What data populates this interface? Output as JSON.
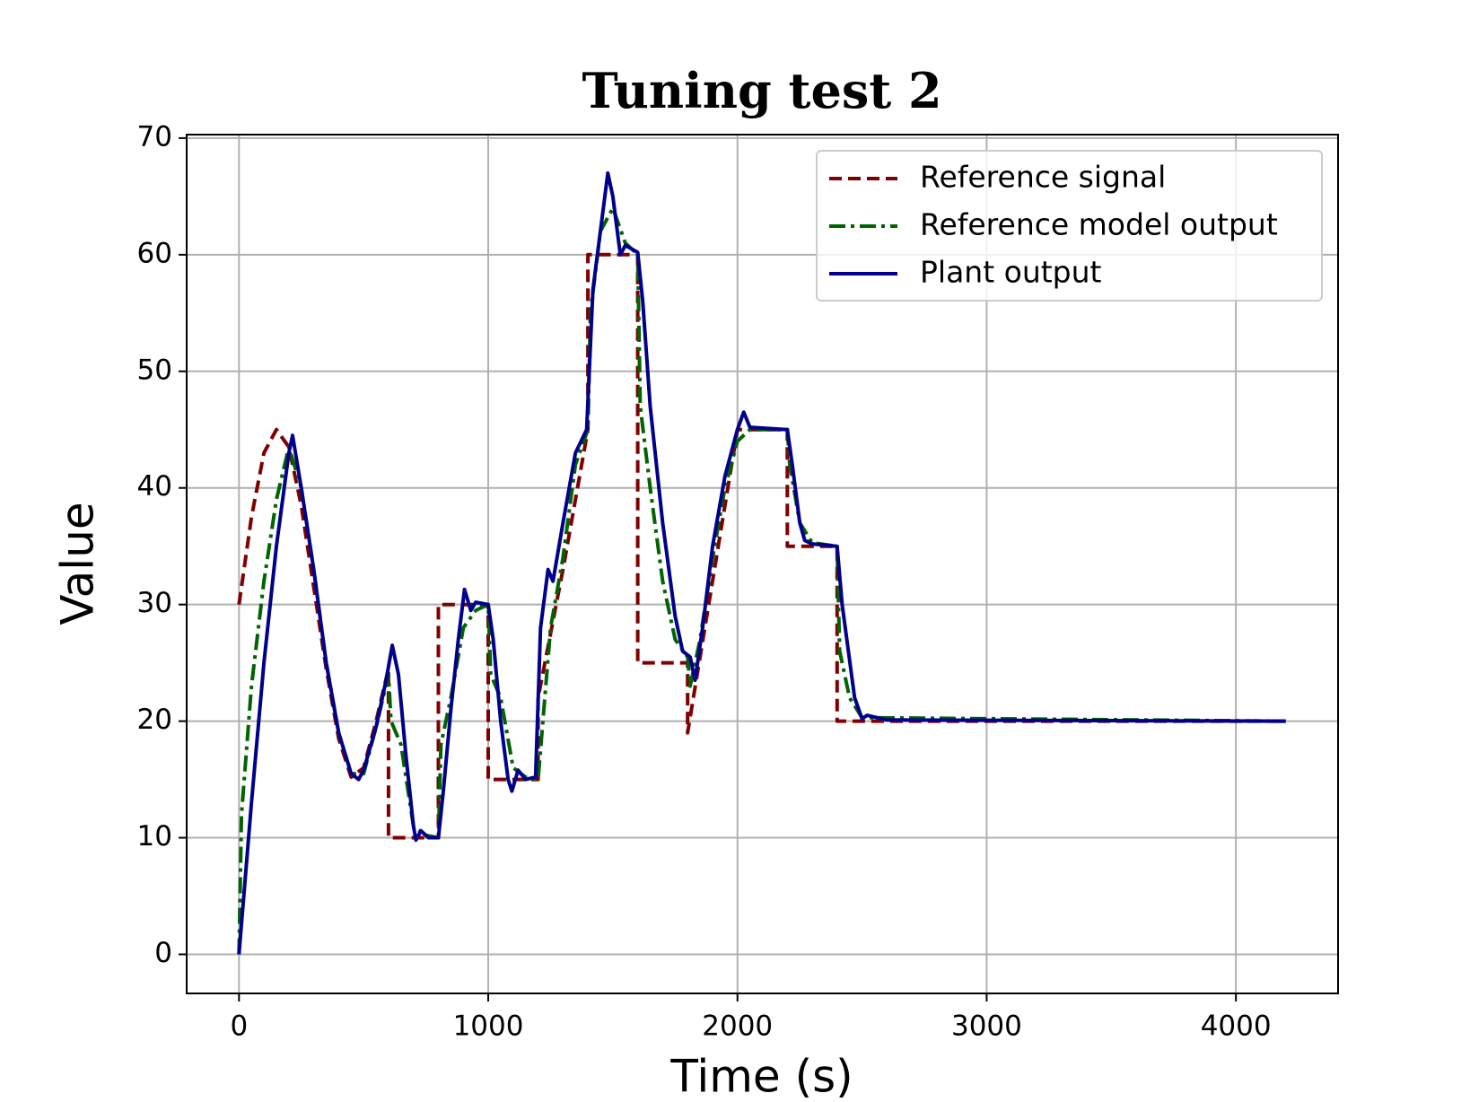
{
  "chart_data": {
    "type": "line",
    "title": "Tuning test 2",
    "xlabel": "Time (s)",
    "ylabel": "Value",
    "xlim": [
      -210,
      4410
    ],
    "ylim": [
      -3.35,
      70.3
    ],
    "xticks": [
      0,
      1000,
      2000,
      3000,
      4000
    ],
    "yticks": [
      0,
      10,
      20,
      30,
      40,
      50,
      60,
      70
    ],
    "grid": true,
    "legend": "upper right",
    "series": [
      {
        "name": "Reference signal",
        "color": "#800000",
        "style": "dashed",
        "x": [
          0,
          50,
          100,
          150,
          200,
          250,
          300,
          350,
          400,
          450,
          500,
          550,
          600,
          600,
          800,
          800,
          1000,
          1000,
          1200,
          1200,
          1300,
          1400,
          1400,
          1600,
          1600,
          1800,
          1800,
          2000,
          2200,
          2200,
          2400,
          2400,
          4200
        ],
        "values": [
          30,
          37.5,
          43,
          45,
          43.5,
          38.5,
          31.5,
          24.5,
          18.5,
          15.2,
          16,
          20,
          24.5,
          10,
          10,
          30,
          30,
          15,
          15,
          22,
          33,
          45,
          60,
          60,
          25,
          25,
          19,
          45,
          45,
          35,
          35,
          20,
          20
        ]
      },
      {
        "name": "Reference model output",
        "color": "#006400",
        "style": "dashdot",
        "x": [
          0,
          10,
          50,
          100,
          150,
          200,
          250,
          300,
          350,
          400,
          450,
          500,
          550,
          600,
          610,
          650,
          700,
          750,
          800,
          810,
          850,
          900,
          950,
          1000,
          1010,
          1050,
          1100,
          1150,
          1200,
          1250,
          1300,
          1350,
          1400,
          1410,
          1450,
          1500,
          1550,
          1600,
          1610,
          1650,
          1700,
          1750,
          1800,
          1810,
          1850,
          1900,
          1950,
          2000,
          2050,
          2200,
          2210,
          2250,
          2300,
          2400,
          2410,
          2450,
          2500,
          4200
        ],
        "values": [
          0,
          12,
          23,
          32,
          39,
          43.5,
          40,
          33,
          25,
          19,
          15.5,
          15.5,
          19.5,
          24,
          20,
          18,
          11,
          10.2,
          10,
          18,
          22,
          28,
          29.5,
          30,
          24,
          22,
          16,
          15.2,
          15,
          28,
          34,
          42,
          45,
          55,
          62,
          64,
          61,
          60,
          47,
          40,
          32,
          27,
          25.5,
          23,
          27,
          34,
          40,
          44,
          45,
          45,
          42,
          37,
          35.3,
          35,
          26,
          22,
          20.3,
          20
        ]
      },
      {
        "name": "Plant output",
        "color": "#00008b",
        "style": "solid",
        "x": [
          0,
          50,
          100,
          150,
          200,
          215,
          250,
          300,
          350,
          400,
          450,
          480,
          500,
          550,
          590,
          615,
          640,
          670,
          700,
          710,
          730,
          760,
          800,
          820,
          850,
          880,
          905,
          930,
          950,
          1000,
          1020,
          1050,
          1080,
          1095,
          1120,
          1150,
          1190,
          1210,
          1240,
          1260,
          1300,
          1350,
          1395,
          1420,
          1450,
          1480,
          1500,
          1530,
          1550,
          1600,
          1620,
          1650,
          1700,
          1750,
          1780,
          1810,
          1830,
          1860,
          1900,
          1950,
          2000,
          2025,
          2050,
          2200,
          2220,
          2250,
          2270,
          2300,
          2400,
          2420,
          2470,
          2500,
          2520,
          2600,
          4200
        ],
        "values": [
          0,
          13,
          25,
          35,
          43,
          44.5,
          40,
          33,
          25,
          19,
          15.5,
          15,
          15.8,
          19.5,
          23.5,
          26.5,
          24,
          17,
          11,
          9.8,
          10.6,
          10,
          10,
          14,
          21,
          27,
          31.3,
          29.5,
          30.2,
          30,
          27,
          20,
          15,
          14,
          15.8,
          15,
          15.2,
          28,
          33,
          32,
          37,
          43,
          45,
          57,
          62,
          67,
          65,
          60,
          60.8,
          60.2,
          56,
          47,
          37,
          29,
          26,
          25.5,
          23.5,
          28,
          35,
          41,
          45,
          46.5,
          45.2,
          45,
          42,
          37,
          35.5,
          35.2,
          35,
          30,
          22,
          20.2,
          20.5,
          20.1,
          20
        ]
      }
    ]
  }
}
